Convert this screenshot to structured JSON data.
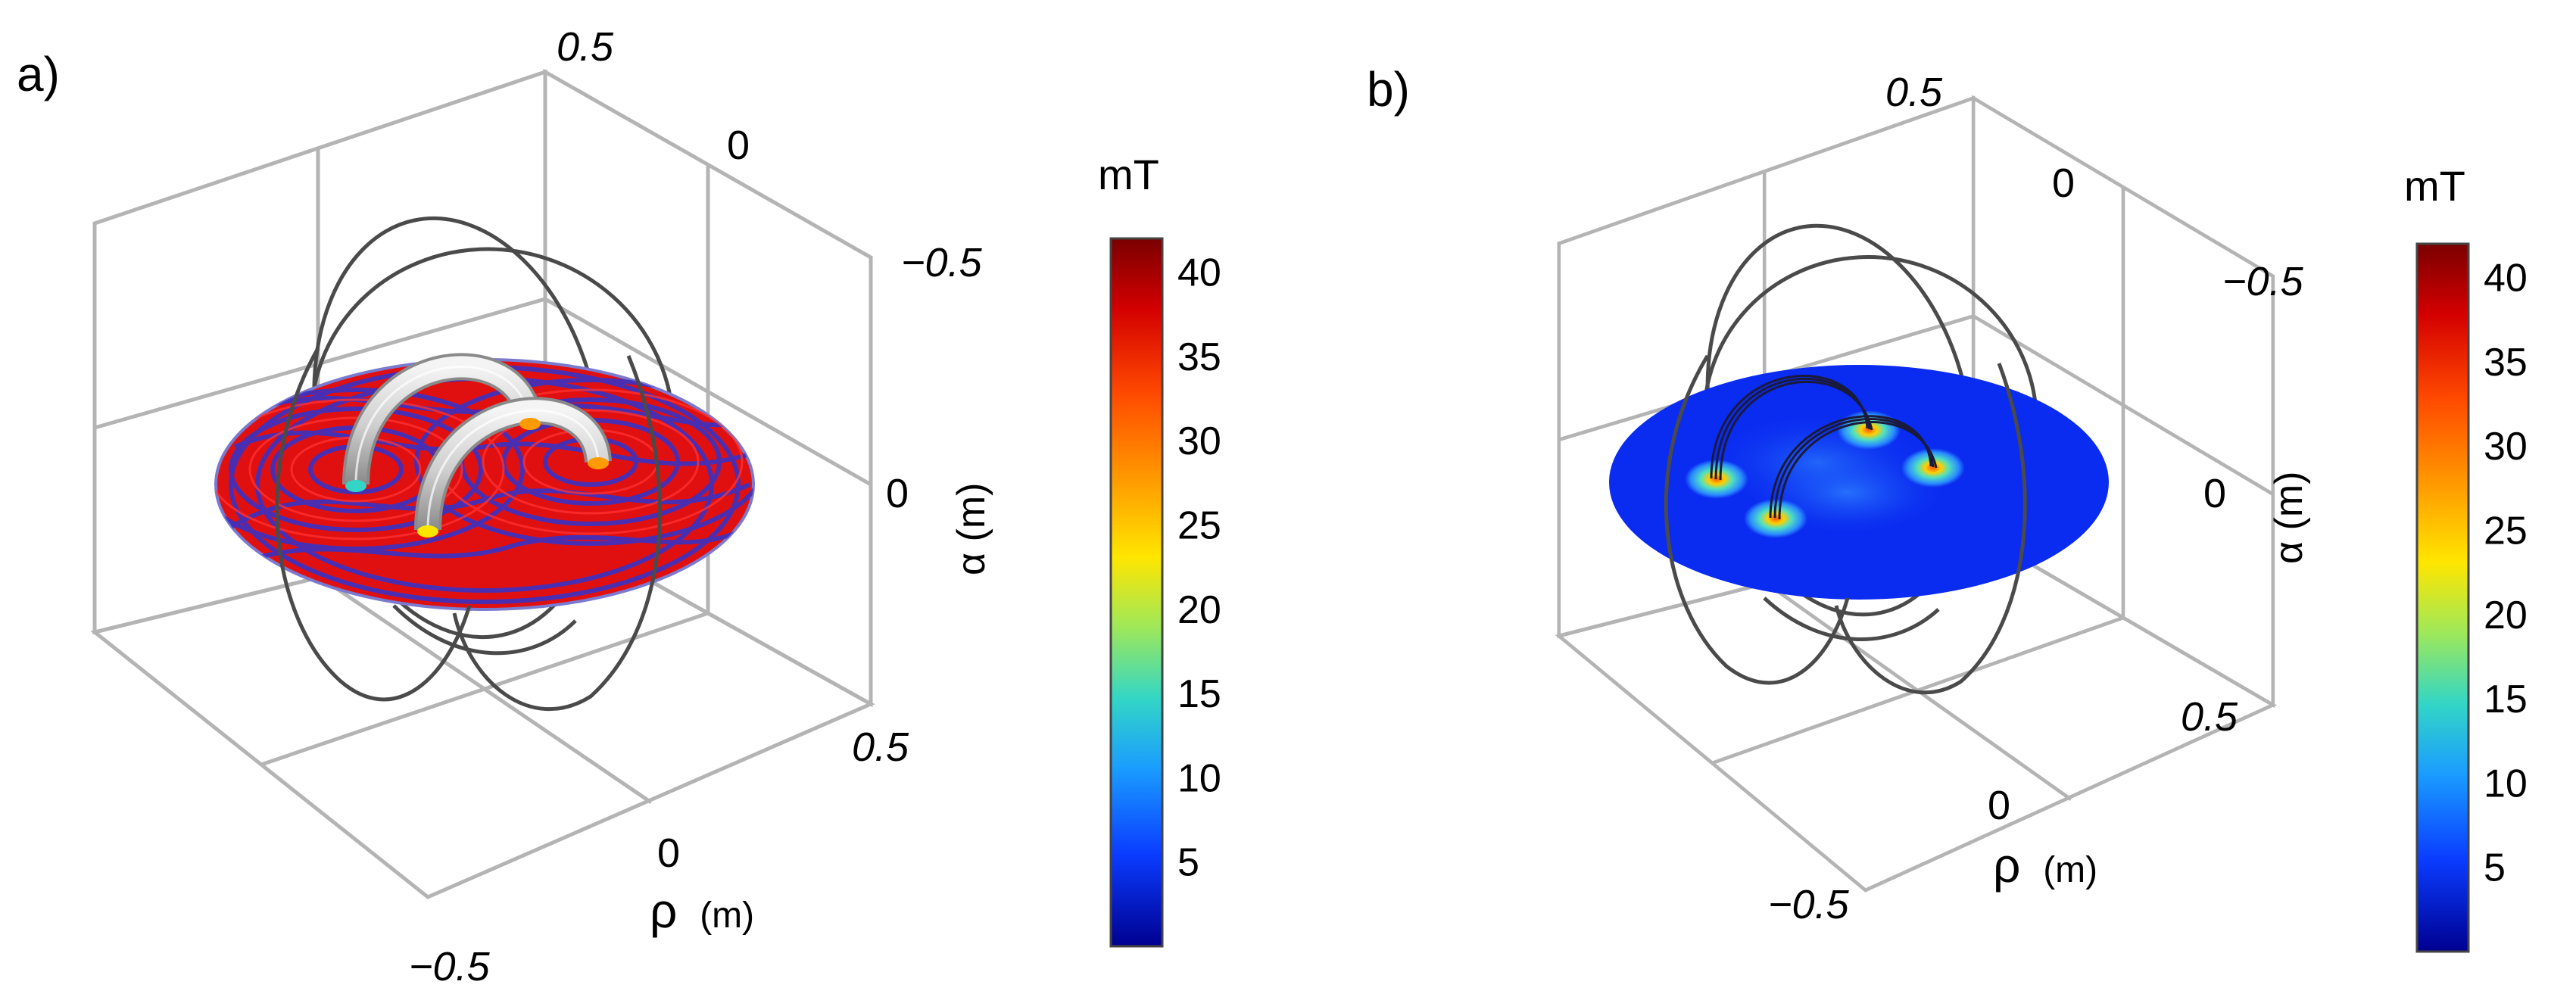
{
  "panels": [
    {
      "id": "a",
      "label": "a)",
      "tick_top_vertical": "0.5",
      "tick_top_mid": "0",
      "tick_top_right": "−0.5",
      "tick_alpha_zero": "0",
      "alpha_axis_label": "α (m)",
      "tick_rho_pos": "0.5",
      "tick_rho_zero": "0",
      "tick_rho_neg": "−0.5",
      "rho_axis_symbol": "ρ",
      "rho_axis_unit": "(m)",
      "disk_style": "field-lines",
      "colorbar": {
        "unit": "mT",
        "ticks": [
          "40",
          "35",
          "30",
          "25",
          "20",
          "15",
          "10",
          "5"
        ],
        "range": [
          0,
          42
        ]
      }
    },
    {
      "id": "b",
      "label": "b)",
      "tick_top_vertical": "0.5",
      "tick_top_mid": "0",
      "tick_top_right": "−0.5",
      "tick_alpha_zero": "0",
      "alpha_axis_label": "α (m)",
      "tick_rho_pos": "0.5",
      "tick_rho_zero": "0",
      "tick_rho_neg": "−0.5",
      "rho_axis_symbol": "ρ",
      "rho_axis_unit": "(m)",
      "disk_style": "magnitude",
      "colorbar": {
        "unit": "mT",
        "ticks": [
          "40",
          "35",
          "30",
          "25",
          "20",
          "15",
          "10",
          "5"
        ],
        "range": [
          0,
          42
        ]
      }
    }
  ],
  "colors": {
    "frame": "#b4b4b4",
    "coil": "#4a4a4a",
    "disk_field_red": "#e11010",
    "disk_field_blue": "#3a32c4",
    "disk_magnitude_blue": "#0a2bf0",
    "colormap": [
      "#7a0000",
      "#d40000",
      "#ff4a00",
      "#ff9a00",
      "#ffe600",
      "#9ee85a",
      "#33d6c6",
      "#1a9cff",
      "#0a3cff",
      "#000090"
    ]
  }
}
